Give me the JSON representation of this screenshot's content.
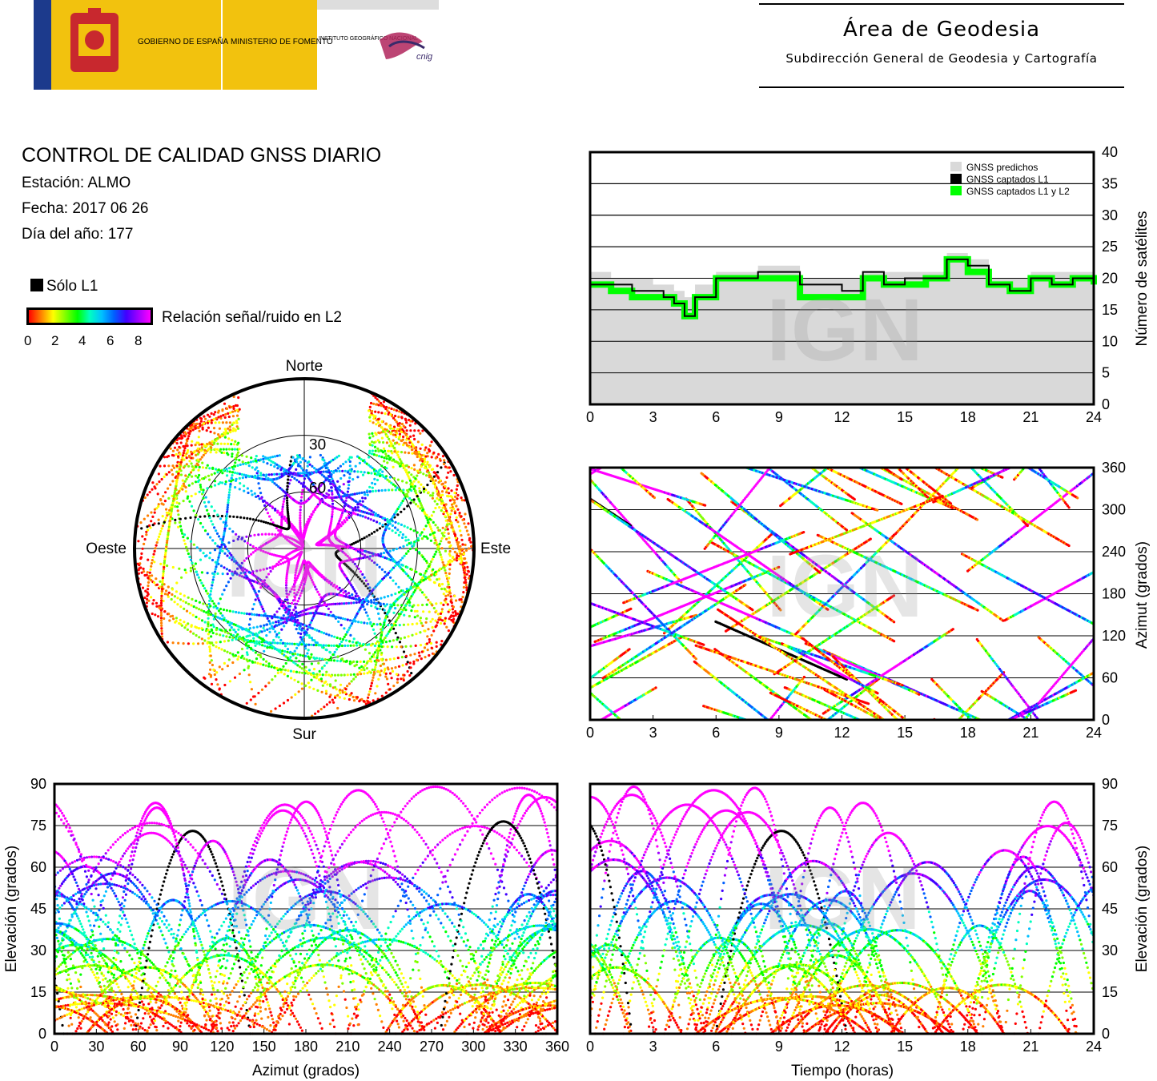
{
  "header": {
    "logo_gov": "GOBIERNO DE ESPAÑA",
    "logo_min": "MINISTERIO DE FOMENTO",
    "logo_ign": "INSTITUTO GEOGRÁFICO NACIONAL",
    "logo_cnig": "cnig",
    "area_title": "Área de Geodesia",
    "area_subtitle": "Subdirección General de Geodesia y Cartografía"
  },
  "report": {
    "title": "CONTROL DE CALIDAD GNSS DIARIO",
    "station": "Estación: ALMO",
    "date": "Fecha: 2017 06 26",
    "doy": "Día del año: 177"
  },
  "legend": {
    "l1_only": "Sólo L1",
    "snr_label": "Relación señal/ruido en L2",
    "snr_ticks": [
      "0",
      "2",
      "4",
      "6",
      "8"
    ]
  },
  "watermark": "IGN",
  "colors": {
    "predicted": "#d9d9d9",
    "l1": "#000000",
    "l1l2": "#00ff00"
  },
  "chart_data": [
    {
      "type": "line",
      "id": "satellites-count",
      "ylabel": "Número de satélites",
      "xlim": [
        0,
        24
      ],
      "ylim": [
        0,
        40
      ],
      "x_ticks": [
        0,
        3,
        6,
        9,
        12,
        15,
        18,
        21,
        24
      ],
      "y_ticks": [
        0,
        5,
        10,
        15,
        20,
        25,
        30,
        35,
        40
      ],
      "grid": true,
      "legend_position": "top-right",
      "series": [
        {
          "name": "GNSS predichos",
          "x": [
            0,
            1,
            2,
            3,
            4,
            4.5,
            5,
            6,
            7,
            8,
            9,
            10,
            11,
            12,
            13,
            14,
            15,
            16,
            17,
            18,
            19,
            20,
            21,
            22,
            23,
            24
          ],
          "values": [
            21,
            20,
            20,
            19,
            18,
            17,
            19,
            21,
            21,
            22,
            22,
            20,
            20,
            20,
            21,
            21,
            21,
            21,
            24,
            23,
            20,
            20,
            21,
            21,
            21,
            20
          ]
        },
        {
          "name": "GNSS captados L1",
          "x": [
            0,
            1,
            2,
            3,
            3.5,
            4,
            4.5,
            5,
            6,
            7,
            8,
            9,
            10,
            11,
            12,
            13,
            14,
            15,
            16,
            17,
            18,
            19,
            20,
            21,
            22,
            23,
            24
          ],
          "values": [
            19,
            19,
            18,
            18,
            17,
            16,
            14,
            17,
            20,
            20,
            21,
            21,
            19,
            19,
            18,
            21,
            19,
            20,
            20,
            23,
            22,
            19,
            18,
            20,
            19,
            20,
            19
          ]
        },
        {
          "name": "GNSS captados L1 y L2",
          "x": [
            0,
            1,
            2,
            3,
            3.5,
            4,
            4.5,
            5,
            6,
            7,
            8,
            9,
            10,
            11,
            12,
            13,
            14,
            15,
            16,
            17,
            18,
            19,
            20,
            21,
            22,
            23,
            24
          ],
          "values": [
            19,
            18,
            17,
            17,
            17,
            16,
            14,
            17,
            20,
            20,
            20,
            20,
            17,
            17,
            17,
            20,
            19,
            19,
            20,
            23,
            21,
            19,
            18,
            20,
            19,
            20,
            19
          ]
        }
      ]
    },
    {
      "type": "scatter",
      "id": "azimuth-time",
      "ylabel": "Azimut (grados)",
      "xlim": [
        0,
        24
      ],
      "ylim": [
        0,
        360
      ],
      "x_ticks": [
        0,
        3,
        6,
        9,
        12,
        15,
        18,
        21,
        24
      ],
      "y_ticks": [
        0,
        60,
        120,
        180,
        240,
        300,
        360
      ],
      "grid": true
    },
    {
      "type": "scatter",
      "id": "skyplot",
      "labels": {
        "north": "Norte",
        "south": "Sur",
        "east": "Este",
        "west": "Oeste"
      },
      "ring_labels": [
        "30",
        "60"
      ]
    },
    {
      "type": "scatter",
      "id": "elevation-azimuth",
      "xlabel": "Azimut (grados)",
      "ylabel": "Elevación (grados)",
      "xlim": [
        0,
        360
      ],
      "ylim": [
        0,
        90
      ],
      "x_ticks": [
        0,
        30,
        60,
        90,
        120,
        150,
        180,
        210,
        240,
        270,
        300,
        330,
        360
      ],
      "y_ticks": [
        0,
        15,
        30,
        45,
        60,
        75,
        90
      ],
      "grid": true
    },
    {
      "type": "scatter",
      "id": "elevation-time",
      "xlabel": "Tiempo (horas)",
      "ylabel": "Elevación (grados)",
      "xlim": [
        0,
        24
      ],
      "ylim": [
        0,
        90
      ],
      "x_ticks": [
        0,
        3,
        6,
        9,
        12,
        15,
        18,
        21,
        24
      ],
      "y_ticks": [
        0,
        15,
        30,
        45,
        60,
        75,
        90
      ],
      "grid": true
    }
  ]
}
